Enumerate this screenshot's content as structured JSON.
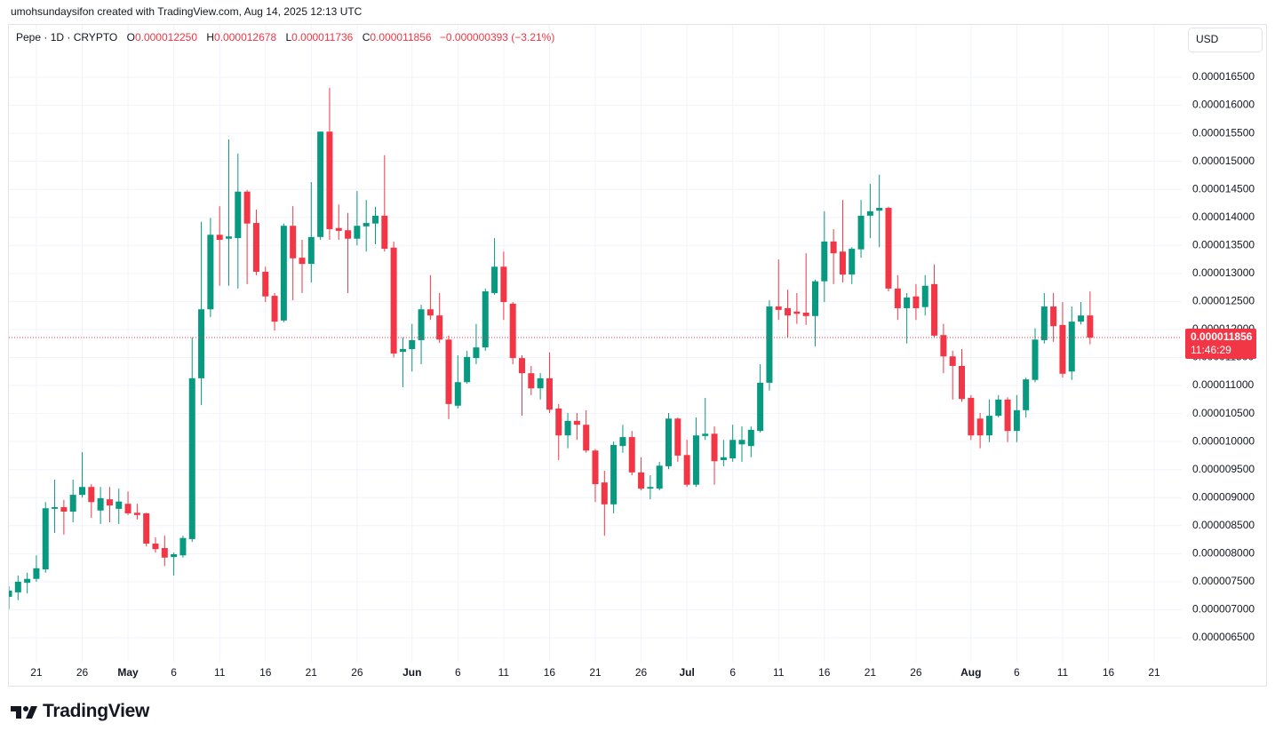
{
  "header": "umohsundaysifon created with TradingView.com, Aug 14, 2025 12:13 UTC",
  "logo": "TradingView",
  "chart_data": {
    "type": "candlestick",
    "legend": {
      "symbol": "Pepe · 1D · CRYPTO",
      "ohlc": [
        {
          "label": "O",
          "value": "0.000012250"
        },
        {
          "label": "H",
          "value": "0.000012678"
        },
        {
          "label": "L",
          "value": "0.000011736"
        },
        {
          "label": "C",
          "value": "0.000011856"
        }
      ],
      "change": "−0.000000393 (−3.21%)"
    },
    "currency": "USD",
    "up_color": "#089981",
    "down_color": "#f23645",
    "grid": true,
    "last_price": {
      "value": 1.1856e-05,
      "label": "0.000011856"
    },
    "countdown": "11:46:29",
    "xlim": [
      "2025-04-18",
      "2025-08-24"
    ],
    "xticks": [
      {
        "value": "2025-04-21",
        "label": "21"
      },
      {
        "value": "2025-04-26",
        "label": "26"
      },
      {
        "value": "2025-05-01",
        "label": "May"
      },
      {
        "value": "2025-05-06",
        "label": "6"
      },
      {
        "value": "2025-05-11",
        "label": "11"
      },
      {
        "value": "2025-05-16",
        "label": "16"
      },
      {
        "value": "2025-05-21",
        "label": "21"
      },
      {
        "value": "2025-05-26",
        "label": "26"
      },
      {
        "value": "2025-06-01",
        "label": "Jun"
      },
      {
        "value": "2025-06-06",
        "label": "6"
      },
      {
        "value": "2025-06-11",
        "label": "11"
      },
      {
        "value": "2025-06-16",
        "label": "16"
      },
      {
        "value": "2025-06-21",
        "label": "21"
      },
      {
        "value": "2025-06-26",
        "label": "26"
      },
      {
        "value": "2025-07-01",
        "label": "Jul"
      },
      {
        "value": "2025-07-06",
        "label": "6"
      },
      {
        "value": "2025-07-11",
        "label": "11"
      },
      {
        "value": "2025-07-16",
        "label": "16"
      },
      {
        "value": "2025-07-21",
        "label": "21"
      },
      {
        "value": "2025-07-26",
        "label": "26"
      },
      {
        "value": "2025-08-01",
        "label": "Aug"
      },
      {
        "value": "2025-08-06",
        "label": "6"
      },
      {
        "value": "2025-08-11",
        "label": "11"
      },
      {
        "value": "2025-08-16",
        "label": "16"
      },
      {
        "value": "2025-08-21",
        "label": "21"
      }
    ],
    "ylim": [
      6.072e-06,
      1.7435e-05
    ],
    "yticks": [
      {
        "value": 6.5e-06,
        "label": "0.000006500"
      },
      {
        "value": 7e-06,
        "label": "0.000007000"
      },
      {
        "value": 7.5e-06,
        "label": "0.000007500"
      },
      {
        "value": 8e-06,
        "label": "0.000008000"
      },
      {
        "value": 8.5e-06,
        "label": "0.000008500"
      },
      {
        "value": 9e-06,
        "label": "0.000009000"
      },
      {
        "value": 9.5e-06,
        "label": "0.000009500"
      },
      {
        "value": 1e-05,
        "label": "0.000010000"
      },
      {
        "value": 1.05e-05,
        "label": "0.000010500"
      },
      {
        "value": 1.1e-05,
        "label": "0.000011000"
      },
      {
        "value": 1.15e-05,
        "label": "0.000011500"
      },
      {
        "value": 1.2e-05,
        "label": "0.000012000"
      },
      {
        "value": 1.25e-05,
        "label": "0.000012500"
      },
      {
        "value": 1.3e-05,
        "label": "0.000013000"
      },
      {
        "value": 1.35e-05,
        "label": "0.000013500"
      },
      {
        "value": 1.4e-05,
        "label": "0.000014000"
      },
      {
        "value": 1.45e-05,
        "label": "0.000014500"
      },
      {
        "value": 1.5e-05,
        "label": "0.000015000"
      },
      {
        "value": 1.55e-05,
        "label": "0.000015500"
      },
      {
        "value": 1.6e-05,
        "label": "0.000016000"
      },
      {
        "value": 1.65e-05,
        "label": "0.000016500"
      }
    ],
    "x": [
      "2025-04-18",
      "2025-04-19",
      "2025-04-20",
      "2025-04-21",
      "2025-04-22",
      "2025-04-23",
      "2025-04-24",
      "2025-04-25",
      "2025-04-26",
      "2025-04-27",
      "2025-04-28",
      "2025-04-29",
      "2025-04-30",
      "2025-05-01",
      "2025-05-02",
      "2025-05-03",
      "2025-05-04",
      "2025-05-05",
      "2025-05-06",
      "2025-05-07",
      "2025-05-08",
      "2025-05-09",
      "2025-05-10",
      "2025-05-11",
      "2025-05-12",
      "2025-05-13",
      "2025-05-14",
      "2025-05-15",
      "2025-05-16",
      "2025-05-17",
      "2025-05-18",
      "2025-05-19",
      "2025-05-20",
      "2025-05-21",
      "2025-05-22",
      "2025-05-23",
      "2025-05-24",
      "2025-05-25",
      "2025-05-26",
      "2025-05-27",
      "2025-05-28",
      "2025-05-29",
      "2025-05-30",
      "2025-05-31",
      "2025-06-01",
      "2025-06-02",
      "2025-06-03",
      "2025-06-04",
      "2025-06-05",
      "2025-06-06",
      "2025-06-07",
      "2025-06-08",
      "2025-06-09",
      "2025-06-10",
      "2025-06-11",
      "2025-06-12",
      "2025-06-13",
      "2025-06-14",
      "2025-06-15",
      "2025-06-16",
      "2025-06-17",
      "2025-06-18",
      "2025-06-19",
      "2025-06-20",
      "2025-06-21",
      "2025-06-22",
      "2025-06-23",
      "2025-06-24",
      "2025-06-25",
      "2025-06-26",
      "2025-06-27",
      "2025-06-28",
      "2025-06-29",
      "2025-06-30",
      "2025-07-01",
      "2025-07-02",
      "2025-07-03",
      "2025-07-04",
      "2025-07-05",
      "2025-07-06",
      "2025-07-07",
      "2025-07-08",
      "2025-07-09",
      "2025-07-10",
      "2025-07-11",
      "2025-07-12",
      "2025-07-13",
      "2025-07-14",
      "2025-07-15",
      "2025-07-16",
      "2025-07-17",
      "2025-07-18",
      "2025-07-19",
      "2025-07-20",
      "2025-07-21",
      "2025-07-22",
      "2025-07-23",
      "2025-07-24",
      "2025-07-25",
      "2025-07-26",
      "2025-07-27",
      "2025-07-28",
      "2025-07-29",
      "2025-07-30",
      "2025-07-31",
      "2025-08-01",
      "2025-08-02",
      "2025-08-03",
      "2025-08-04",
      "2025-08-05",
      "2025-08-06",
      "2025-08-07",
      "2025-08-08",
      "2025-08-09",
      "2025-08-10",
      "2025-08-11",
      "2025-08-12",
      "2025-08-13",
      "2025-08-14"
    ],
    "open": [
      7.23e-06,
      7.31e-06,
      7.48e-06,
      7.55e-06,
      7.72e-06,
      8.8e-06,
      8.83e-06,
      8.75e-06,
      9.05e-06,
      9.19e-06,
      8.77e-06,
      8.97e-06,
      8.8e-06,
      8.89e-06,
      8.73e-06,
      8.72e-06,
      8.18e-06,
      8.1e-06,
      7.94e-06,
      7.97e-06,
      8.26e-06,
      1.113e-05,
      1.236e-05,
      1.369e-05,
      1.362e-05,
      1.363e-05,
      1.446e-05,
      1.39e-05,
      1.303e-05,
      1.26e-05,
      1.216e-05,
      1.385e-05,
      1.328e-05,
      1.317e-05,
      1.365e-05,
      1.553e-05,
      1.381e-05,
      1.377e-05,
      1.362e-05,
      1.384e-05,
      1.389e-05,
      1.403e-05,
      1.346e-05,
      1.16e-05,
      1.165e-05,
      1.181e-05,
      1.236e-05,
      1.225e-05,
      1.182e-05,
      1.064e-05,
      1.106e-05,
      1.149e-05,
      1.168e-05,
      1.265e-05,
      1.312e-05,
      1.246e-05,
      1.149e-05,
      1.122e-05,
      1.095e-05,
      1.113e-05,
      1.059e-05,
      1.011e-05,
      1.037e-05,
      1.03e-05,
      9.84e-06,
      9.27e-06,
      8.88e-06,
      9.92e-06,
      1.008e-05,
      9.45e-06,
      9.16e-06,
      9.16e-06,
      9.56e-06,
      1.041e-05,
      9.76e-06,
      9.23e-06,
      1.01e-05,
      1.014e-05,
      9.67e-06,
      9.7e-06,
      9.95e-06,
      9.92e-06,
      1.019e-05,
      1.105e-05,
      1.241e-05,
      1.238e-05,
      1.232e-05,
      1.23e-05,
      1.224e-05,
      1.286e-05,
      1.357e-05,
      1.339e-05,
      1.298e-05,
      1.343e-05,
      1.403e-05,
      1.412e-05,
      1.417e-05,
      1.273e-05,
      1.238e-05,
      1.259e-05,
      1.24e-05,
      1.281e-05,
      1.19e-05,
      1.152e-05,
      1.135e-05,
      1.078e-05,
      1.041e-05,
      1.011e-05,
      1.046e-05,
      1.075e-05,
      1.019e-05,
      1.056e-05,
      1.11e-05,
      1.181e-05,
      1.241e-05,
      1.208e-05,
      1.125e-05,
      1.214e-05,
      1.225e-05
    ],
    "high": [
      7.42e-06,
      7.61e-06,
      7.66e-06,
      7.97e-06,
      8.92e-06,
      9.32e-06,
      8.96e-06,
      9.32e-06,
      9.81e-06,
      9.24e-06,
      9.19e-06,
      9.19e-06,
      9.16e-06,
      9.11e-06,
      8.89e-06,
      8.73e-06,
      8.29e-06,
      8.32e-06,
      8.02e-06,
      8.32e-06,
      1.186e-05,
      1.392e-05,
      1.399e-05,
      1.42e-05,
      1.539e-05,
      1.514e-05,
      1.449e-05,
      1.414e-05,
      1.312e-05,
      1.265e-05,
      1.389e-05,
      1.42e-05,
      1.36e-05,
      1.463e-05,
      1.553e-05,
      1.631e-05,
      1.423e-05,
      1.408e-05,
      1.447e-05,
      1.431e-05,
      1.419e-05,
      1.511e-05,
      1.357e-05,
      1.186e-05,
      1.21e-05,
      1.244e-05,
      1.297e-05,
      1.265e-05,
      1.189e-05,
      1.154e-05,
      1.162e-05,
      1.21e-05,
      1.273e-05,
      1.363e-05,
      1.339e-05,
      1.249e-05,
      1.154e-05,
      1.135e-05,
      1.122e-05,
      1.159e-05,
      1.067e-05,
      1.051e-05,
      1.051e-05,
      1.056e-05,
      9.87e-06,
      9.48e-06,
      1e-05,
      1.03e-05,
      1.019e-05,
      9.72e-06,
      9.4e-06,
      9.64e-06,
      1.051e-05,
      1.043e-05,
      1.003e-05,
      1.043e-05,
      1.078e-05,
      1.027e-05,
      1.003e-05,
      1.03e-05,
      1.027e-05,
      1.027e-05,
      1.138e-05,
      1.252e-05,
      1.325e-05,
      1.271e-05,
      1.265e-05,
      1.336e-05,
      1.289e-05,
      1.411e-05,
      1.379e-05,
      1.431e-05,
      1.347e-05,
      1.431e-05,
      1.46e-05,
      1.476e-05,
      1.419e-05,
      1.297e-05,
      1.265e-05,
      1.281e-05,
      1.297e-05,
      1.316e-05,
      1.21e-05,
      1.162e-05,
      1.165e-05,
      1.083e-05,
      1.051e-05,
      1.075e-05,
      1.083e-05,
      1.079e-05,
      1.083e-05,
      1.114e-05,
      1.202e-05,
      1.265e-05,
      1.265e-05,
      1.249e-05,
      1.241e-05,
      1.249e-05,
      1.2678e-05
    ],
    "low": [
      7.01e-06,
      7.17e-06,
      7.29e-06,
      7.5e-06,
      7.66e-06,
      8.37e-06,
      8.34e-06,
      8.56e-06,
      9e-06,
      8.64e-06,
      8.53e-06,
      8.56e-06,
      8.53e-06,
      8.69e-06,
      8.61e-06,
      8.13e-06,
      8.02e-06,
      7.78e-06,
      7.61e-06,
      7.93e-06,
      8.21e-06,
      1.065e-05,
      1.222e-05,
      1.278e-05,
      1.278e-05,
      1.273e-05,
      1.281e-05,
      1.297e-05,
      1.249e-05,
      1.198e-05,
      1.213e-05,
      1.252e-05,
      1.265e-05,
      1.284e-05,
      1.36e-05,
      1.36e-05,
      1.36e-05,
      1.265e-05,
      1.35e-05,
      1.339e-05,
      1.352e-05,
      1.339e-05,
      1.15e-05,
      1.097e-05,
      1.125e-05,
      1.138e-05,
      1.217e-05,
      1.176e-05,
      1.04e-05,
      1.059e-05,
      1.103e-05,
      1.138e-05,
      1.162e-05,
      1.262e-05,
      1.217e-05,
      1.138e-05,
      1.046e-05,
      1.083e-05,
      1.075e-05,
      1.051e-05,
      9.67e-06,
      9.88e-06,
      1.003e-05,
      9.8e-06,
      8.92e-06,
      8.32e-06,
      8.72e-06,
      9.8e-06,
      9.4e-06,
      9.13e-06,
      8.97e-06,
      9.13e-06,
      9.51e-06,
      9.64e-06,
      9.19e-06,
      9.19e-06,
      1.003e-05,
      9.23e-06,
      9.56e-06,
      9.64e-06,
      9.64e-06,
      9.72e-06,
      1.016e-05,
      1.091e-05,
      1.217e-05,
      1.186e-05,
      1.21e-05,
      1.208e-05,
      1.17e-05,
      1.249e-05,
      1.281e-05,
      1.284e-05,
      1.281e-05,
      1.328e-05,
      1.363e-05,
      1.347e-05,
      1.268e-05,
      1.217e-05,
      1.175e-05,
      1.217e-05,
      1.225e-05,
      1.186e-05,
      1.122e-05,
      1.075e-05,
      1.071e-05,
      1.003e-05,
      9.88e-06,
      9.99e-06,
      1.043e-05,
      9.99e-06,
      9.99e-06,
      1.043e-05,
      1.106e-05,
      1.175e-05,
      1.178e-05,
      1.114e-05,
      1.11e-05,
      1.209e-05,
      1.1736e-05
    ],
    "close": [
      7.34e-06,
      7.5e-06,
      7.55e-06,
      7.74e-06,
      8.81e-06,
      8.83e-06,
      8.75e-06,
      9.05e-06,
      9.19e-06,
      8.92e-06,
      8.99e-06,
      8.86e-06,
      8.93e-06,
      8.72e-06,
      8.69e-06,
      8.18e-06,
      8.08e-06,
      7.93e-06,
      7.99e-06,
      8.28e-06,
      1.113e-05,
      1.236e-05,
      1.369e-05,
      1.36e-05,
      1.366e-05,
      1.446e-05,
      1.389e-05,
      1.303e-05,
      1.259e-05,
      1.214e-05,
      1.385e-05,
      1.327e-05,
      1.317e-05,
      1.365e-05,
      1.553e-05,
      1.379e-05,
      1.376e-05,
      1.362e-05,
      1.385e-05,
      1.39e-05,
      1.403e-05,
      1.344e-05,
      1.157e-05,
      1.165e-05,
      1.181e-05,
      1.236e-05,
      1.225e-05,
      1.182e-05,
      1.067e-05,
      1.106e-05,
      1.151e-05,
      1.168e-05,
      1.268e-05,
      1.312e-05,
      1.249e-05,
      1.149e-05,
      1.122e-05,
      1.095e-05,
      1.113e-05,
      1.057e-05,
      1.011e-05,
      1.037e-05,
      1.03e-05,
      9.84e-06,
      9.24e-06,
      8.88e-06,
      9.94e-06,
      1.008e-05,
      9.45e-06,
      9.16e-06,
      9.19e-06,
      9.57e-06,
      1.041e-05,
      9.75e-06,
      9.23e-06,
      1.011e-05,
      1.014e-05,
      9.65e-06,
      9.72e-06,
      1.003e-05,
      1.003e-05,
      1.021e-05,
      1.105e-05,
      1.241e-05,
      1.235e-05,
      1.225e-05,
      1.228e-05,
      1.224e-05,
      1.286e-05,
      1.357e-05,
      1.336e-05,
      1.298e-05,
      1.344e-05,
      1.403e-05,
      1.411e-05,
      1.417e-05,
      1.273e-05,
      1.238e-05,
      1.257e-05,
      1.238e-05,
      1.278e-05,
      1.189e-05,
      1.152e-05,
      1.135e-05,
      1.076e-05,
      1.011e-05,
      1.011e-05,
      1.046e-05,
      1.075e-05,
      1.019e-05,
      1.056e-05,
      1.111e-05,
      1.182e-05,
      1.241e-05,
      1.206e-05,
      1.121e-05,
      1.214e-05,
      1.225e-05,
      1.1856e-05
    ]
  }
}
